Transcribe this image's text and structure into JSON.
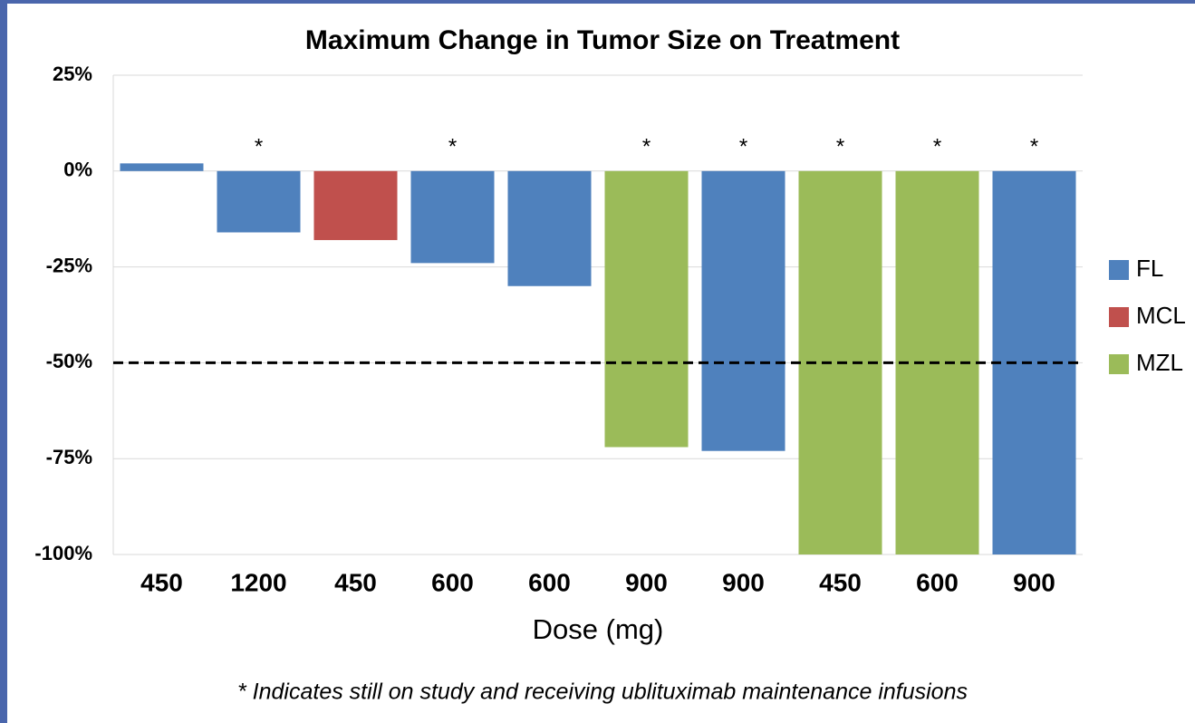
{
  "chart_data": {
    "type": "bar",
    "title": "Maximum  Change in Tumor Size on Treatment",
    "x_label": "Dose (mg)",
    "categories": [
      "450",
      "1200",
      "450",
      "600",
      "600",
      "900",
      "900",
      "450",
      "600",
      "900"
    ],
    "series": [
      {
        "name": "FL",
        "color": "#4f81bd",
        "values": [
          2,
          -16,
          null,
          -24,
          -30,
          null,
          -73,
          null,
          null,
          -100
        ]
      },
      {
        "name": "MCL",
        "color": "#c0504d",
        "values": [
          null,
          null,
          -18,
          null,
          null,
          null,
          null,
          null,
          null,
          null
        ]
      },
      {
        "name": "MZL",
        "color": "#9bbb59",
        "values": [
          null,
          null,
          null,
          null,
          null,
          -72,
          null,
          -100,
          -100,
          null
        ]
      }
    ],
    "annotations": [
      null,
      "*",
      null,
      "*",
      null,
      "*",
      "*",
      "*",
      "*",
      "*"
    ],
    "reference_line": -50,
    "ylim": [
      -100,
      25
    ],
    "yticks": [
      {
        "value": -100,
        "label": "-100%"
      },
      {
        "value": -75,
        "label": "-75%"
      },
      {
        "value": -50,
        "label": "-50%"
      },
      {
        "value": -25,
        "label": "-25%"
      },
      {
        "value": 0,
        "label": "0%"
      },
      {
        "value": 25,
        "label": "25%"
      }
    ],
    "grid": true,
    "legend": "right",
    "footnote": "* Indicates still on study and receiving ublituximab maintenance infusions"
  }
}
